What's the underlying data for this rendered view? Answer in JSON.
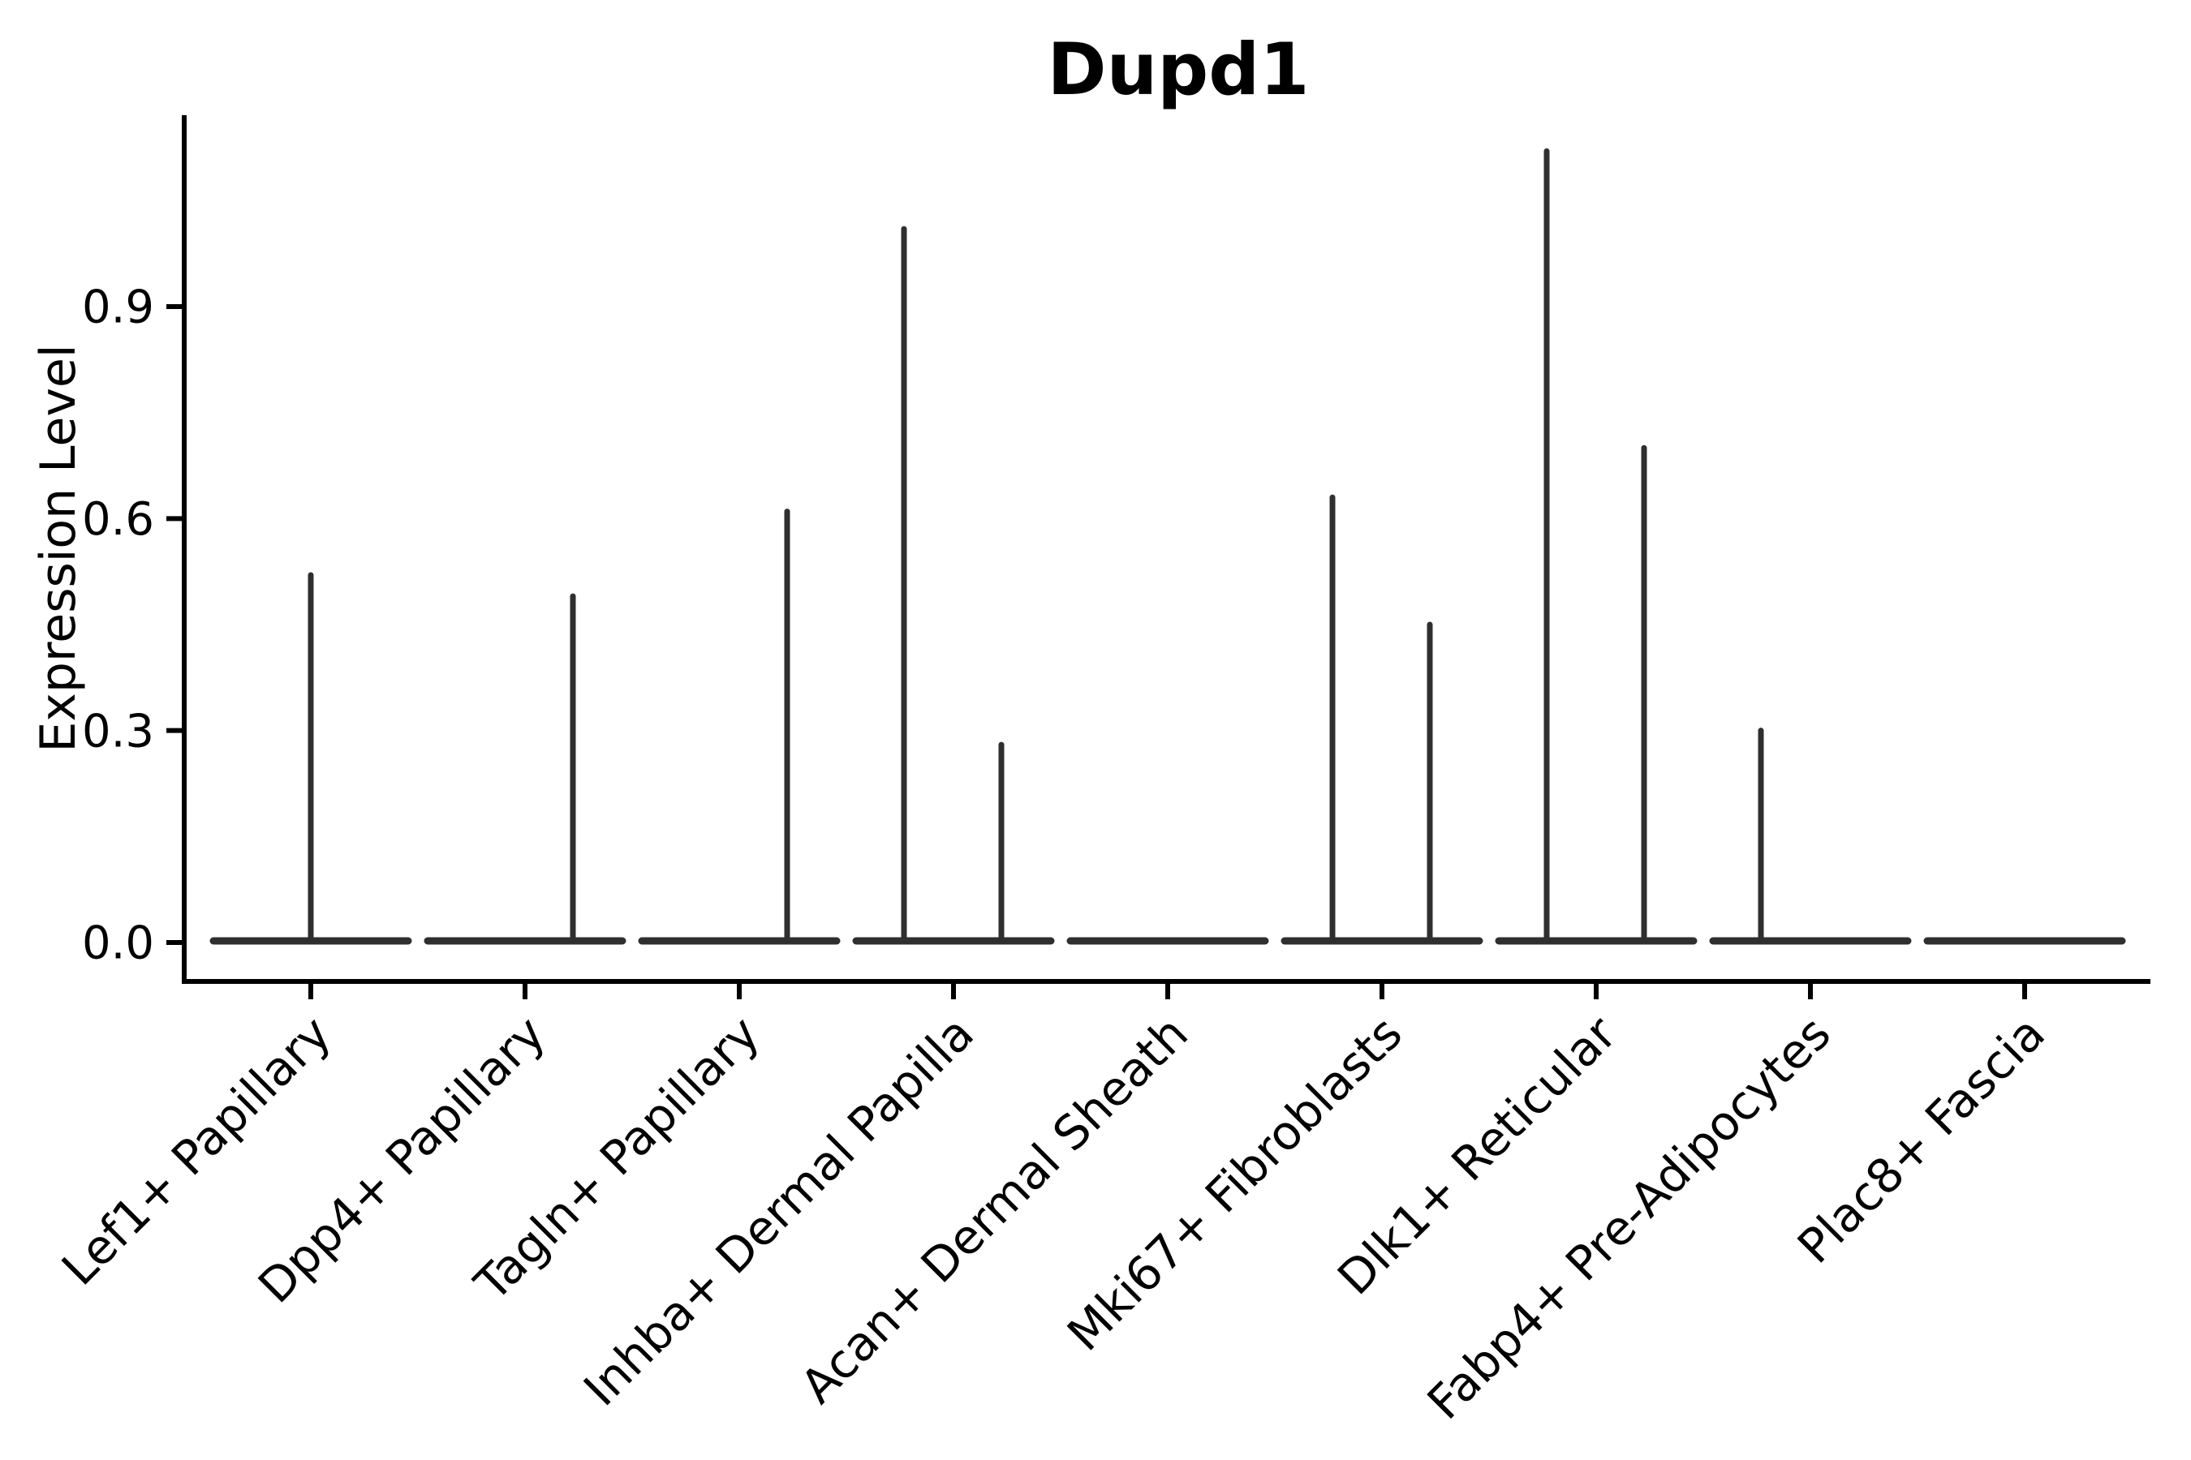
{
  "colors": {
    "background": "#ffffff",
    "axis": "#000000",
    "text": "#000000",
    "violin": "#2f2f2f"
  },
  "chart_data": {
    "type": "violin",
    "title": "Dupd1",
    "xlabel": "",
    "ylabel": "Expression Level",
    "ylim": [
      -0.05,
      1.17
    ],
    "yticks": [
      0.0,
      0.3,
      0.6,
      0.9
    ],
    "ytick_labels": [
      "0.0",
      "0.3",
      "0.6",
      "0.9"
    ],
    "grid": "off",
    "legend": "none",
    "baseline_value": 0.0,
    "categories": [
      "Lef1+ Papillary",
      "Dpp4+ Papillary",
      "Tagln+ Papillary",
      "Inhba+ Dermal Papilla",
      "Acan+ Dermal Sheath",
      "Mki67+ Fibroblasts",
      "Dlk1+ Reticular",
      "Fabp4+ Pre-Adipocytes",
      "Plac8+ Fascia"
    ],
    "violins": [
      {
        "label": "Lef1+ Papillary",
        "spikes": [
          {
            "position": "center",
            "value": 0.52
          }
        ]
      },
      {
        "label": "Dpp4+ Papillary",
        "spikes": [
          {
            "position": "right",
            "value": 0.49
          }
        ]
      },
      {
        "label": "Tagln+ Papillary",
        "spikes": [
          {
            "position": "right",
            "value": 0.61
          }
        ]
      },
      {
        "label": "Inhba+ Dermal Papilla",
        "spikes": [
          {
            "position": "left",
            "value": 1.01
          },
          {
            "position": "right",
            "value": 0.28
          }
        ]
      },
      {
        "label": "Acan+ Dermal Sheath",
        "spikes": []
      },
      {
        "label": "Mki67+ Fibroblasts",
        "spikes": [
          {
            "position": "left",
            "value": 0.63
          },
          {
            "position": "right",
            "value": 0.45
          }
        ]
      },
      {
        "label": "Dlk1+ Reticular",
        "spikes": [
          {
            "position": "left",
            "value": 1.12
          },
          {
            "position": "right",
            "value": 0.7
          }
        ]
      },
      {
        "label": "Fabp4+ Pre-Adipocytes",
        "spikes": [
          {
            "position": "left",
            "value": 0.3
          }
        ]
      },
      {
        "label": "Plac8+ Fascia",
        "spikes": []
      }
    ]
  }
}
